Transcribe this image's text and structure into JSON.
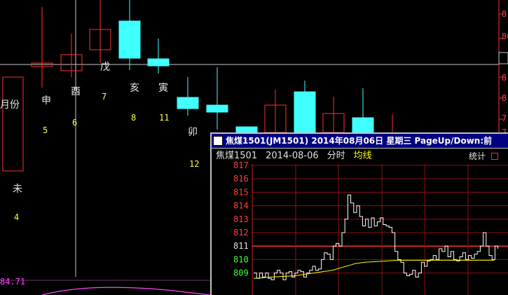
{
  "main_chart": {
    "period_labels": [
      {
        "text": "月份"
      },
      {
        "text": "申"
      },
      {
        "text": "酉"
      },
      {
        "text": "戊"
      },
      {
        "text": "亥"
      },
      {
        "text": "寅"
      },
      {
        "text": "卯"
      },
      {
        "text": "未"
      }
    ],
    "period_numbers": [
      {
        "text": "5"
      },
      {
        "text": "6"
      },
      {
        "text": "7"
      },
      {
        "text": "8"
      },
      {
        "text": "11"
      },
      {
        "text": "12"
      },
      {
        "text": "4"
      }
    ],
    "right_axis": [
      {
        "text": "8"
      },
      {
        "text": "80"
      },
      {
        "text": "8"
      },
      {
        "text": "8"
      },
      {
        "text": "7"
      },
      {
        "text": "7"
      }
    ],
    "bottom_value": "84.71",
    "colors": {
      "up": "#ff3030",
      "down": "#40ffff",
      "crosshair": "#c8c8c8"
    }
  },
  "popup": {
    "title": "焦煤1501(JM1501) 2014年08月06日 星期三 PageUp/Down:前",
    "title_icon": "chart-window-icon",
    "header": {
      "name": "焦煤1501",
      "date": "2014-08-06",
      "chart_kind": "分时",
      "avg_label": "均线",
      "stats_label": "统计"
    },
    "price_axis": [
      "817",
      "816",
      "815",
      "814",
      "813",
      "812",
      "811",
      "810",
      "809"
    ],
    "reference_price": "811"
  },
  "chart_data": {
    "type": "line",
    "title": "",
    "xlabel": "",
    "ylabel": "",
    "ylim": [
      808.5,
      817
    ],
    "reference_value": 811,
    "series": [
      {
        "values": [
          809,
          808.6,
          809,
          808.7,
          809,
          808.6,
          808.5,
          809,
          809.2,
          809,
          808.5,
          809,
          809.1,
          808.7,
          809,
          809.2,
          809.1,
          808.7,
          809,
          809.2,
          809.5,
          809.2,
          809.3,
          810,
          810.5,
          810.4,
          810,
          811,
          811.2,
          811,
          812,
          813,
          814.8,
          814.2,
          813.5,
          814,
          813.2,
          812.5,
          813,
          812.4,
          813.1,
          812.5,
          812.8,
          813.1,
          812.6,
          812.5,
          812.4,
          812,
          810.6,
          810,
          809.8,
          809,
          808.8,
          808.9,
          809.2,
          808.7,
          809,
          809.8,
          809.5,
          809.9,
          810,
          810.3,
          810,
          810.8,
          810.6,
          811,
          810.2,
          810.6,
          810,
          809.9,
          810.2,
          810.5,
          810,
          810.3,
          810.1,
          810.4,
          810.6,
          811,
          812,
          811,
          810.3,
          810,
          811,
          810.8
        ]
      },
      {
        "values": [
          808.6,
          808.62,
          808.65,
          808.68,
          808.7,
          808.72,
          808.74,
          808.76,
          808.78,
          808.8,
          808.85,
          808.9,
          808.95,
          809,
          809.05,
          809.1,
          809.15,
          809.2,
          809.3,
          809.4,
          809.5,
          809.6,
          809.7,
          809.75,
          809.8,
          809.82,
          809.84,
          809.86,
          809.88,
          809.9,
          809.92,
          809.93,
          809.94,
          809.95,
          809.95,
          809.95,
          809.95,
          809.95,
          809.95,
          809.95,
          809.95,
          809.95,
          809.95,
          809.95,
          809.95,
          809.95,
          809.95,
          809.95,
          809.95,
          809.95,
          809.95,
          809.95,
          809.95
        ]
      }
    ]
  }
}
